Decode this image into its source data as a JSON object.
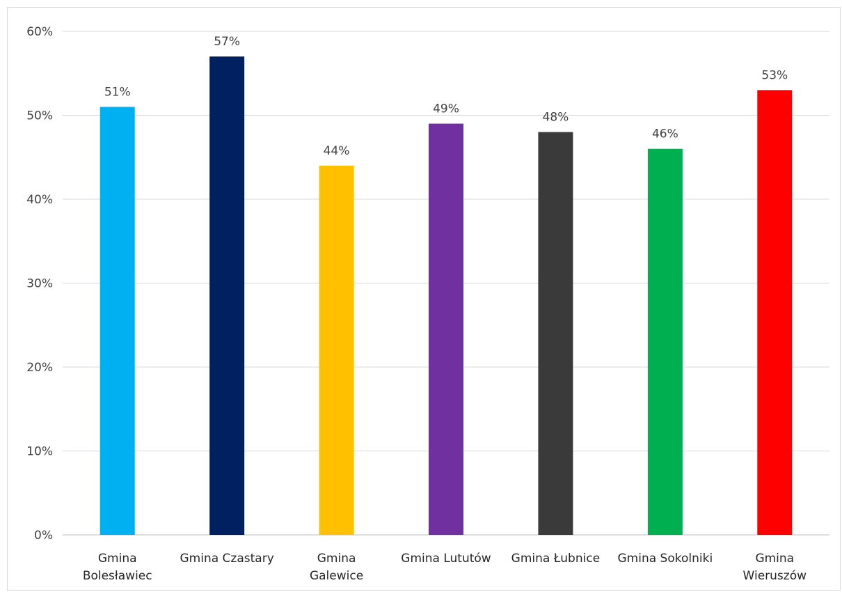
{
  "chart_data": {
    "type": "bar",
    "title": "",
    "xlabel": "",
    "ylabel": "",
    "categories": [
      "Gmina Bolesławiec",
      "Gmina Czastary",
      "Gmina Galewice",
      "Gmina Lututów",
      "Gmina Łubnice",
      "Gmina Sokolniki",
      "Gmina Wieruszów"
    ],
    "category_label_lines": [
      [
        "Gmina",
        "Bolesławiec"
      ],
      [
        "Gmina Czastary"
      ],
      [
        "Gmina",
        "Galewice"
      ],
      [
        "Gmina Lututów"
      ],
      [
        "Gmina Łubnice"
      ],
      [
        "Gmina Sokolniki"
      ],
      [
        "Gmina",
        "Wieruszów"
      ]
    ],
    "values": [
      0.51,
      0.57,
      0.44,
      0.49,
      0.48,
      0.46,
      0.53
    ],
    "data_labels": [
      "51%",
      "57%",
      "44%",
      "49%",
      "48%",
      "46%",
      "53%"
    ],
    "colors": [
      "#00b0f0",
      "#002060",
      "#ffc000",
      "#7030a0",
      "#3a3a3a",
      "#00b050",
      "#ff0000"
    ],
    "ylim": [
      0,
      0.6
    ],
    "y_ticks": [
      0,
      0.1,
      0.2,
      0.3,
      0.4,
      0.5,
      0.6
    ],
    "y_tick_labels": [
      "0%",
      "10%",
      "20%",
      "30%",
      "40%",
      "50%",
      "60%"
    ],
    "grid": true,
    "legend": "none"
  }
}
